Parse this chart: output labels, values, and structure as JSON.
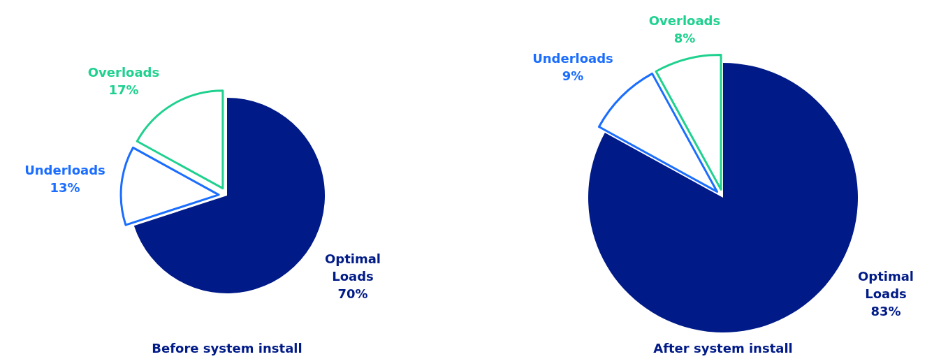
{
  "chart_data": [
    {
      "type": "pie",
      "title": "Before system install",
      "categories": [
        "Optimal Loads",
        "Underloads",
        "Overloads"
      ],
      "values": [
        70,
        13,
        17
      ],
      "colors": [
        "#001a87",
        "#1a6dff",
        "#1fd18f"
      ],
      "value_labels": [
        "70%",
        "13%",
        "17%"
      ]
    },
    {
      "type": "pie",
      "title": "After system install",
      "categories": [
        "Optimal Loads",
        "Underloads",
        "Overloads"
      ],
      "values": [
        83,
        9,
        8
      ],
      "colors": [
        "#001a87",
        "#1a6dff",
        "#1fd18f"
      ],
      "value_labels": [
        "83%",
        "9%",
        "8%"
      ]
    }
  ]
}
